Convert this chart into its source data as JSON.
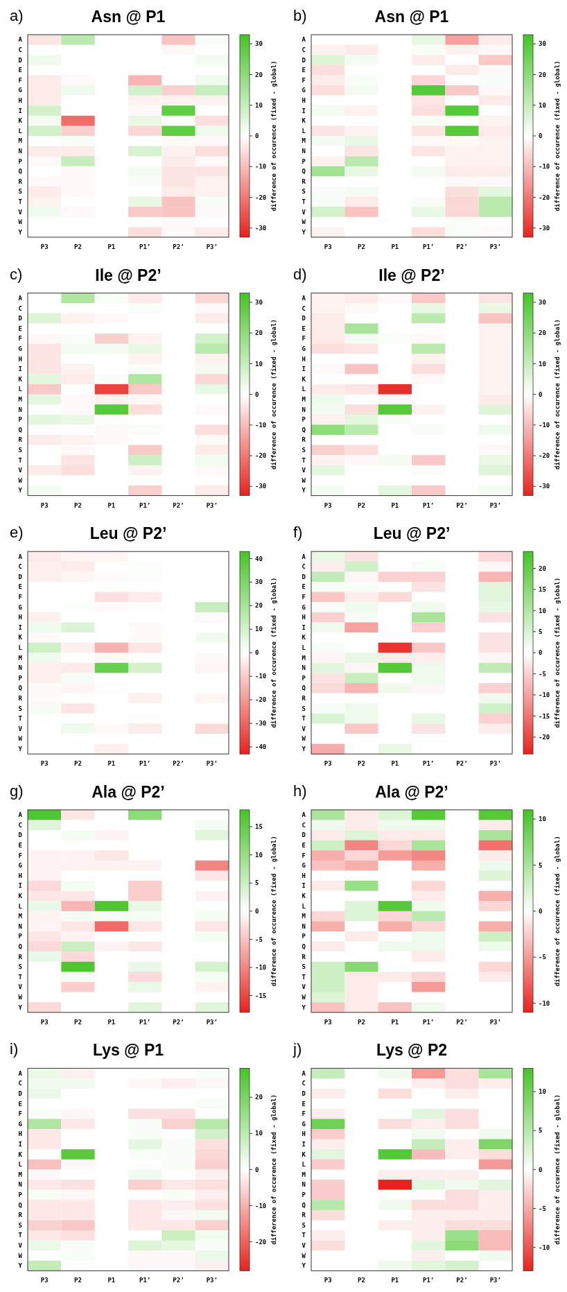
{
  "chart_data": [
    {
      "type": "heatmap",
      "title": "Asn @ P1",
      "annotations": [
        "a)"
      ],
      "clabel": "difference of occurence (fixed - global)",
      "clim": [
        -33,
        33
      ],
      "cticks": [
        -30,
        -20,
        -10,
        0,
        10,
        20,
        30
      ],
      "categories": [
        "P3",
        "P2",
        "P1",
        "P1’",
        "P2’",
        "P3’"
      ],
      "y_categories": [
        "A",
        "C",
        "D",
        "E",
        "F",
        "G",
        "H",
        "I",
        "K",
        "L",
        "M",
        "N",
        "P",
        "Q",
        "R",
        "S",
        "T",
        "V",
        "W",
        "Y"
      ],
      "cells": [
        [
          -4,
          12,
          null,
          0,
          -9,
          1
        ],
        [
          0,
          0,
          null,
          0,
          -1,
          0
        ],
        [
          3,
          0,
          null,
          0,
          0,
          2
        ],
        [
          0,
          0,
          null,
          0,
          0,
          0
        ],
        [
          -3,
          -1,
          null,
          -11,
          0,
          3
        ],
        [
          -3,
          3,
          null,
          8,
          -7,
          10
        ],
        [
          -3,
          0,
          null,
          -2,
          -2,
          -2
        ],
        [
          8,
          0,
          null,
          -1,
          28,
          0
        ],
        [
          2,
          -22,
          null,
          4,
          0,
          -5
        ],
        [
          8,
          -7,
          null,
          -6,
          28,
          3
        ],
        [
          0,
          1,
          null,
          0,
          -1,
          -1
        ],
        [
          -3,
          -3,
          null,
          7,
          -2,
          -5
        ],
        [
          -1,
          10,
          null,
          0,
          -3,
          -1
        ],
        [
          0,
          -1,
          null,
          2,
          -4,
          -4
        ],
        [
          -1,
          -1,
          null,
          1,
          -4,
          -2
        ],
        [
          -3,
          -1,
          null,
          0,
          -3,
          -2
        ],
        [
          -2,
          0,
          null,
          4,
          -9,
          1
        ],
        [
          3,
          -1,
          null,
          -8,
          -9,
          -1
        ],
        [
          0,
          0,
          null,
          0,
          -1,
          0
        ],
        [
          0,
          0,
          null,
          -5,
          -1,
          -3
        ]
      ]
    },
    {
      "type": "heatmap",
      "title": "Asn @ P1",
      "annotations": [
        "b)"
      ],
      "clabel": "difference of occurence (fixed - global)",
      "clim": [
        -33,
        33
      ],
      "cticks": [
        -30,
        -20,
        -10,
        0,
        10,
        20,
        30
      ],
      "categories": [
        "P3",
        "P2",
        "P1",
        "P1’",
        "P2’",
        "P3’"
      ],
      "y_categories": [
        "A",
        "C",
        "D",
        "E",
        "F",
        "G",
        "H",
        "I",
        "K",
        "L",
        "M",
        "N",
        "P",
        "Q",
        "R",
        "S",
        "T",
        "V",
        "W",
        "Y"
      ],
      "cells": [
        [
          0,
          0,
          null,
          4,
          -14,
          -3
        ],
        [
          -2,
          -3,
          null,
          1,
          -2,
          -1
        ],
        [
          6,
          2,
          null,
          -3,
          0,
          -8
        ],
        [
          -5,
          0,
          null,
          0,
          -3,
          -1
        ],
        [
          -3,
          1,
          null,
          -6,
          0,
          1
        ],
        [
          -5,
          2,
          null,
          30,
          -8,
          -1
        ],
        [
          0,
          0,
          null,
          -4,
          0,
          -3
        ],
        [
          2,
          -2,
          null,
          -5,
          30,
          0
        ],
        [
          0,
          0,
          null,
          1,
          0,
          -2
        ],
        [
          -4,
          -2,
          null,
          -4,
          30,
          -3
        ],
        [
          2,
          4,
          null,
          -1,
          -1,
          -2
        ],
        [
          0,
          -4,
          null,
          -4,
          -2,
          -2
        ],
        [
          -2,
          12,
          null,
          0,
          -2,
          -2
        ],
        [
          16,
          4,
          null,
          2,
          -3,
          -3
        ],
        [
          0,
          0,
          null,
          0,
          -1,
          -1
        ],
        [
          1,
          2,
          null,
          0,
          -5,
          5
        ],
        [
          1,
          -3,
          null,
          1,
          -6,
          12
        ],
        [
          8,
          -9,
          null,
          4,
          -6,
          12
        ],
        [
          0,
          0,
          null,
          0,
          1,
          0
        ],
        [
          -2,
          0,
          null,
          -5,
          1,
          -1
        ]
      ]
    },
    {
      "type": "heatmap",
      "title": "Ile @ P2’",
      "annotations": [
        "c)"
      ],
      "clabel": "difference of occurence (fixed - global)",
      "clim": [
        -33,
        33
      ],
      "cticks": [
        -30,
        -20,
        -10,
        0,
        10,
        20,
        30
      ],
      "categories": [
        "P3",
        "P2",
        "P1",
        "P1’",
        "P2’",
        "P3’"
      ],
      "y_categories": [
        "A",
        "C",
        "D",
        "E",
        "F",
        "G",
        "H",
        "I",
        "K",
        "L",
        "M",
        "N",
        "P",
        "Q",
        "R",
        "S",
        "T",
        "V",
        "W",
        "Y"
      ],
      "cells": [
        [
          0,
          14,
          1,
          -3,
          null,
          -6
        ],
        [
          0,
          0,
          0,
          1,
          null,
          -1
        ],
        [
          6,
          -2,
          -1,
          0,
          null,
          -3
        ],
        [
          0,
          0,
          0,
          0,
          null,
          0
        ],
        [
          -1,
          1,
          -7,
          -2,
          null,
          8
        ],
        [
          -4,
          2,
          2,
          4,
          null,
          12
        ],
        [
          -4,
          0,
          0,
          -2,
          null,
          -2
        ],
        [
          -4,
          -2,
          0,
          1,
          null,
          2
        ],
        [
          5,
          -3,
          1,
          14,
          null,
          -6
        ],
        [
          -8,
          0,
          -28,
          -8,
          null,
          4
        ],
        [
          5,
          -1,
          -2,
          -1,
          null,
          0
        ],
        [
          0,
          -1,
          30,
          -5,
          null,
          -1
        ],
        [
          5,
          4,
          0,
          0,
          null,
          0
        ],
        [
          0,
          0,
          -1,
          1,
          null,
          -5
        ],
        [
          -3,
          -2,
          -1,
          0,
          null,
          -1
        ],
        [
          0,
          -1,
          0,
          -8,
          null,
          -3
        ],
        [
          0,
          -4,
          0,
          9,
          null,
          2
        ],
        [
          -3,
          -5,
          0,
          -2,
          null,
          -1
        ],
        [
          0,
          0,
          0,
          0,
          null,
          0
        ],
        [
          2,
          0,
          0,
          -7,
          null,
          -3
        ]
      ]
    },
    {
      "type": "heatmap",
      "title": "Ile @ P2’",
      "annotations": [
        "d)"
      ],
      "clabel": "difference of occurence (fixed - global)",
      "clim": [
        -33,
        33
      ],
      "cticks": [
        -30,
        -20,
        -10,
        0,
        10,
        20,
        30
      ],
      "categories": [
        "P3",
        "P2",
        "P1",
        "P1’",
        "P2’",
        "P3’"
      ],
      "y_categories": [
        "A",
        "C",
        "D",
        "E",
        "F",
        "G",
        "H",
        "I",
        "K",
        "L",
        "M",
        "N",
        "P",
        "Q",
        "R",
        "S",
        "T",
        "V",
        "W",
        "Y"
      ],
      "cells": [
        [
          -2,
          -3,
          -1,
          -8,
          null,
          -4
        ],
        [
          -2,
          -1,
          0,
          4,
          null,
          4
        ],
        [
          -3,
          0,
          0,
          12,
          null,
          -9
        ],
        [
          -3,
          15,
          0,
          0,
          null,
          -2
        ],
        [
          -3,
          2,
          1,
          -1,
          null,
          -2
        ],
        [
          -5,
          -4,
          0,
          12,
          null,
          -2
        ],
        [
          0,
          0,
          0,
          -2,
          null,
          -2
        ],
        [
          -1,
          -9,
          0,
          -5,
          null,
          -2
        ],
        [
          0,
          0,
          0,
          -1,
          null,
          -2
        ],
        [
          -3,
          -4,
          -31,
          0,
          null,
          -2
        ],
        [
          3,
          0,
          -1,
          0,
          null,
          -3
        ],
        [
          2,
          -5,
          30,
          -2,
          null,
          6
        ],
        [
          -2,
          5,
          1,
          0,
          null,
          0
        ],
        [
          20,
          12,
          0,
          1,
          null,
          3
        ],
        [
          0,
          0,
          0,
          0,
          null,
          0
        ],
        [
          -7,
          -5,
          0,
          0,
          null,
          -1
        ],
        [
          -2,
          -1,
          2,
          -8,
          null,
          4
        ],
        [
          5,
          0,
          0,
          1,
          null,
          6
        ],
        [
          0,
          0,
          0,
          0,
          null,
          0
        ],
        [
          2,
          0,
          5,
          -8,
          null,
          2
        ]
      ]
    },
    {
      "type": "heatmap",
      "title": "Leu @ P2’",
      "annotations": [
        "e)"
      ],
      "clabel": "difference of occurence (fixed - global)",
      "clim": [
        -43,
        43
      ],
      "cticks": [
        -40,
        -30,
        -20,
        -10,
        0,
        10,
        20,
        30,
        40
      ],
      "categories": [
        "P3",
        "P2",
        "P1",
        "P1’",
        "P2’",
        "P3’"
      ],
      "y_categories": [
        "A",
        "C",
        "D",
        "E",
        "F",
        "G",
        "H",
        "I",
        "K",
        "L",
        "M",
        "N",
        "P",
        "Q",
        "R",
        "S",
        "T",
        "V",
        "W",
        "Y"
      ],
      "cells": [
        [
          -4,
          -2,
          -2,
          0,
          null,
          0
        ],
        [
          -3,
          -4,
          0,
          1,
          null,
          0
        ],
        [
          -3,
          -2,
          -1,
          1,
          null,
          0
        ],
        [
          0,
          0,
          0,
          0,
          null,
          0
        ],
        [
          0,
          0,
          -6,
          -4,
          null,
          0
        ],
        [
          0,
          1,
          -1,
          1,
          null,
          13
        ],
        [
          -3,
          0,
          0,
          0,
          null,
          -1
        ],
        [
          4,
          8,
          0,
          -1,
          null,
          0
        ],
        [
          -1,
          0,
          0,
          -1,
          null,
          3
        ],
        [
          11,
          -3,
          -15,
          -5,
          null,
          0
        ],
        [
          4,
          0,
          -1,
          0,
          null,
          -1
        ],
        [
          -3,
          -4,
          35,
          10,
          null,
          -2
        ],
        [
          -3,
          2,
          0,
          0,
          null,
          0
        ],
        [
          -1,
          -2,
          1,
          0,
          null,
          0
        ],
        [
          -1,
          0,
          0,
          -3,
          null,
          -2
        ],
        [
          2,
          -5,
          0,
          0,
          null,
          0
        ],
        [
          0,
          0,
          0,
          1,
          null,
          0
        ],
        [
          0,
          4,
          -1,
          -4,
          null,
          -7
        ],
        [
          0,
          0,
          0,
          0,
          null,
          0
        ],
        [
          0,
          0,
          -3,
          0,
          null,
          0
        ]
      ]
    },
    {
      "type": "heatmap",
      "title": "Leu @ P2’",
      "annotations": [
        "f)"
      ],
      "clabel": "difference of occurence (fixed - global)",
      "clim": [
        -24,
        24
      ],
      "cticks": [
        -20,
        -15,
        -10,
        -5,
        0,
        5,
        10,
        15,
        20
      ],
      "categories": [
        "P3",
        "P2",
        "P1",
        "P1’",
        "P2’",
        "P3’"
      ],
      "y_categories": [
        "A",
        "C",
        "D",
        "E",
        "F",
        "G",
        "H",
        "I",
        "K",
        "L",
        "M",
        "N",
        "P",
        "Q",
        "R",
        "S",
        "T",
        "V",
        "W",
        "Y"
      ],
      "cells": [
        [
          3,
          -3,
          0,
          0,
          null,
          -4
        ],
        [
          -2,
          6,
          0,
          1,
          null,
          -1
        ],
        [
          8,
          -1,
          -5,
          -5,
          null,
          -8
        ],
        [
          1,
          1,
          0,
          -3,
          null,
          4
        ],
        [
          -6,
          -2,
          -4,
          0,
          null,
          4
        ],
        [
          1,
          2,
          0,
          2,
          null,
          3
        ],
        [
          -5,
          1,
          0,
          11,
          null,
          -3
        ],
        [
          2,
          -10,
          0,
          -5,
          null,
          0
        ],
        [
          0,
          0,
          0,
          0,
          null,
          -3
        ],
        [
          1,
          0,
          -22,
          -6,
          null,
          -3
        ],
        [
          -1,
          3,
          -2,
          -2,
          null,
          -1
        ],
        [
          4,
          -1,
          22,
          2,
          null,
          8
        ],
        [
          -3,
          7,
          0,
          2,
          null,
          0
        ],
        [
          -4,
          -8,
          2,
          -1,
          null,
          -5
        ],
        [
          0,
          0,
          0,
          0,
          null,
          2
        ],
        [
          1,
          2,
          0,
          0,
          null,
          6
        ],
        [
          5,
          2,
          0,
          3,
          null,
          -5
        ],
        [
          0,
          -6,
          0,
          -3,
          null,
          -2
        ],
        [
          0,
          0,
          0,
          0,
          null,
          0
        ],
        [
          -9,
          0,
          3,
          0,
          null,
          0
        ]
      ]
    },
    {
      "type": "heatmap",
      "title": "Ala @ P2’",
      "annotations": [
        "g)"
      ],
      "clabel": "difference of occurence (fixed - global)",
      "clim": [
        -18,
        18
      ],
      "cticks": [
        -15,
        -10,
        -5,
        0,
        5,
        10,
        15
      ],
      "categories": [
        "P3",
        "P2",
        "P1",
        "P1’",
        "P2’",
        "P3’"
      ],
      "y_categories": [
        "A",
        "C",
        "D",
        "E",
        "F",
        "G",
        "H",
        "I",
        "K",
        "L",
        "M",
        "N",
        "P",
        "Q",
        "R",
        "S",
        "T",
        "V",
        "W",
        "Y"
      ],
      "cells": [
        [
          17,
          -2,
          0,
          11,
          null,
          0
        ],
        [
          3,
          0,
          0,
          0,
          null,
          1
        ],
        [
          0,
          1,
          -1,
          0,
          null,
          3
        ],
        [
          0,
          0,
          0,
          0,
          null,
          0
        ],
        [
          -1,
          -1,
          -2,
          0,
          null,
          0
        ],
        [
          -1,
          -1,
          -1,
          -1,
          null,
          -10
        ],
        [
          -1,
          0,
          0,
          0,
          null,
          -2
        ],
        [
          -3,
          1,
          0,
          -4,
          null,
          0
        ],
        [
          -2,
          -2,
          0,
          -4,
          null,
          -1
        ],
        [
          2,
          -6,
          17,
          2,
          null,
          0
        ],
        [
          -1,
          1,
          1,
          1,
          null,
          1
        ],
        [
          -1,
          -2,
          -12,
          -2,
          null,
          -2
        ],
        [
          -2,
          -1,
          0,
          0,
          null,
          1
        ],
        [
          -3,
          5,
          -1,
          -2,
          null,
          0
        ],
        [
          2,
          -3,
          0,
          0,
          null,
          0
        ],
        [
          0,
          17,
          0,
          2,
          null,
          4
        ],
        [
          0,
          1,
          0,
          -3,
          null,
          1
        ],
        [
          0,
          -4,
          0,
          2,
          null,
          -1
        ],
        [
          0,
          0,
          0,
          0,
          null,
          0
        ],
        [
          -3,
          0,
          0,
          3,
          null,
          3
        ]
      ]
    },
    {
      "type": "heatmap",
      "title": "Ala @ P2’",
      "annotations": [
        "h)"
      ],
      "clabel": "difference of occurence (fixed - global)",
      "clim": [
        -11,
        11
      ],
      "cticks": [
        -10,
        -5,
        0,
        5,
        10
      ],
      "categories": [
        "P3",
        "P2",
        "P1",
        "P1’",
        "P2’",
        "P3’"
      ],
      "y_categories": [
        "A",
        "C",
        "D",
        "E",
        "F",
        "G",
        "H",
        "I",
        "K",
        "L",
        "M",
        "N",
        "P",
        "Q",
        "R",
        "S",
        "T",
        "V",
        "W",
        "Y"
      ],
      "cells": [
        [
          5,
          -1,
          2,
          10,
          null,
          10
        ],
        [
          1,
          -1,
          1,
          1,
          null,
          -1
        ],
        [
          -1,
          2,
          -1,
          -1,
          null,
          5
        ],
        [
          3,
          -6,
          -2,
          5,
          null,
          -7
        ],
        [
          -4,
          -2,
          -5,
          -6,
          null,
          -1
        ],
        [
          -3,
          -4,
          0,
          -4,
          null,
          1
        ],
        [
          0,
          0,
          0,
          0,
          null,
          2
        ],
        [
          -1,
          6,
          0,
          -2,
          null,
          0
        ],
        [
          0,
          0,
          0,
          -1,
          null,
          -4
        ],
        [
          0,
          2,
          10,
          1,
          null,
          -2
        ],
        [
          -2,
          2,
          -2,
          4,
          null,
          0
        ],
        [
          -4,
          0,
          -4,
          -2,
          null,
          -4
        ],
        [
          0,
          -1,
          0,
          1,
          null,
          3
        ],
        [
          -1,
          0,
          1,
          1,
          null,
          1
        ],
        [
          0,
          0,
          0,
          -1,
          null,
          0
        ],
        [
          3,
          7,
          0,
          0,
          null,
          -2
        ],
        [
          3,
          -1,
          -1,
          -2,
          null,
          -1
        ],
        [
          3,
          -1,
          0,
          -5,
          null,
          0
        ],
        [
          2,
          -1,
          0,
          0,
          null,
          0
        ],
        [
          -3,
          -1,
          -3,
          1,
          null,
          0
        ]
      ]
    },
    {
      "type": "heatmap",
      "title": "Lys @ P1",
      "annotations": [
        "i)"
      ],
      "clabel": "difference of occurence (fixed - global)",
      "clim": [
        -28,
        28
      ],
      "cticks": [
        -20,
        -10,
        0,
        10,
        20
      ],
      "categories": [
        "P3",
        "P2",
        "P1",
        "P1’",
        "P2’",
        "P3’"
      ],
      "y_categories": [
        "A",
        "C",
        "D",
        "E",
        "F",
        "G",
        "H",
        "I",
        "K",
        "L",
        "M",
        "N",
        "P",
        "Q",
        "R",
        "S",
        "T",
        "V",
        "W",
        "Y"
      ],
      "cells": [
        [
          3,
          -2,
          null,
          0,
          0,
          1
        ],
        [
          2,
          2,
          null,
          -1,
          -2,
          -1
        ],
        [
          3,
          0,
          null,
          0,
          0,
          0
        ],
        [
          0,
          0,
          null,
          0,
          0,
          1
        ],
        [
          1,
          -1,
          null,
          -4,
          -4,
          0
        ],
        [
          12,
          -3,
          null,
          1,
          -6,
          11
        ],
        [
          -3,
          0,
          null,
          1,
          0,
          7
        ],
        [
          -3,
          0,
          null,
          4,
          1,
          -4
        ],
        [
          0,
          25,
          null,
          1,
          1,
          -5
        ],
        [
          -8,
          -1,
          null,
          0,
          1,
          -6
        ],
        [
          -1,
          0,
          null,
          2,
          0,
          -2
        ],
        [
          -3,
          -4,
          null,
          -6,
          -3,
          -4
        ],
        [
          1,
          -1,
          null,
          0,
          1,
          -2
        ],
        [
          -3,
          -3,
          null,
          -3,
          -2,
          -4
        ],
        [
          -3,
          -3,
          null,
          -3,
          -1,
          2
        ],
        [
          -6,
          -7,
          null,
          -3,
          -3,
          -6
        ],
        [
          -3,
          -4,
          null,
          0,
          8,
          2
        ],
        [
          3,
          1,
          null,
          5,
          4,
          1
        ],
        [
          0,
          1,
          null,
          -1,
          -1,
          3
        ],
        [
          9,
          0,
          null,
          -1,
          -1,
          -2
        ]
      ]
    },
    {
      "type": "heatmap",
      "title": "Lys @ P2",
      "annotations": [
        "j)"
      ],
      "clabel": "difference of occurence (fixed - global)",
      "clim": [
        -13,
        13
      ],
      "cticks": [
        -10,
        -5,
        0,
        5,
        10
      ],
      "categories": [
        "P3",
        "P2",
        "P1",
        "P1’",
        "P2’",
        "P3’"
      ],
      "y_categories": [
        "A",
        "C",
        "D",
        "E",
        "F",
        "G",
        "H",
        "I",
        "K",
        "L",
        "M",
        "N",
        "P",
        "Q",
        "R",
        "S",
        "T",
        "V",
        "W",
        "Y"
      ],
      "cells": [
        [
          4,
          null,
          1,
          -6,
          -2,
          6
        ],
        [
          0,
          null,
          0,
          -1,
          -2,
          -1
        ],
        [
          -1,
          null,
          -2,
          0,
          -1,
          0
        ],
        [
          0,
          null,
          0,
          0,
          0,
          0
        ],
        [
          -1,
          null,
          0,
          2,
          -2,
          0
        ],
        [
          10,
          null,
          -2,
          -1,
          -2,
          0
        ],
        [
          -3,
          null,
          0,
          1,
          0,
          1
        ],
        [
          -1,
          null,
          0,
          4,
          -1,
          9
        ],
        [
          2,
          null,
          12,
          -4,
          -1,
          -2
        ],
        [
          -3,
          null,
          0,
          0,
          0,
          -6
        ],
        [
          0,
          null,
          -1,
          -1,
          -1,
          0
        ],
        [
          -3,
          null,
          -13,
          2,
          1,
          2
        ],
        [
          -3,
          null,
          0,
          0,
          -2,
          -1
        ],
        [
          5,
          null,
          1,
          -2,
          -2,
          -1
        ],
        [
          -2,
          null,
          0,
          -1,
          -1,
          -1
        ],
        [
          0,
          null,
          -1,
          -1,
          -2,
          -2
        ],
        [
          -1,
          null,
          0,
          -1,
          7,
          -4
        ],
        [
          -2,
          null,
          0,
          2,
          8,
          -4
        ],
        [
          0,
          null,
          0,
          -1,
          0,
          1
        ],
        [
          0,
          null,
          1,
          2,
          3,
          0
        ]
      ]
    }
  ]
}
